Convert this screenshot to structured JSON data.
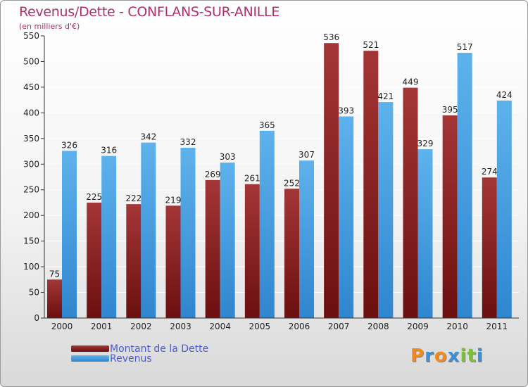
{
  "title": "Revenus/Dette - CONFLANS-SUR-ANILLE",
  "subtitle": "(en milliers d'€)",
  "logo_text": "Proxiti",
  "colors": {
    "dette": "#6b0f10",
    "dette_light": "#a43636",
    "revenus": "#2f86cf",
    "revenus_light": "#5eb2ec",
    "title": "#b0306a",
    "legend_text": "#4a5ad8"
  },
  "chart_data": {
    "type": "bar",
    "title": "Revenus/Dette - CONFLANS-SUR-ANILLE",
    "subtitle": "(en milliers d'€)",
    "categories": [
      "2000",
      "2001",
      "2002",
      "2003",
      "2004",
      "2005",
      "2006",
      "2007",
      "2008",
      "2009",
      "2010",
      "2011"
    ],
    "series": [
      {
        "name": "Montant de la Dette",
        "values": [
          75,
          225,
          222,
          219,
          269,
          261,
          252,
          536,
          521,
          449,
          395,
          274
        ]
      },
      {
        "name": "Revenus",
        "values": [
          326,
          316,
          342,
          332,
          303,
          365,
          307,
          393,
          421,
          329,
          517,
          424
        ]
      }
    ],
    "ylim": [
      0,
      550
    ],
    "yticks": [
      0,
      50,
      100,
      150,
      200,
      250,
      300,
      350,
      400,
      450,
      500,
      550
    ],
    "grid": true,
    "legend_position": "bottom-left"
  }
}
